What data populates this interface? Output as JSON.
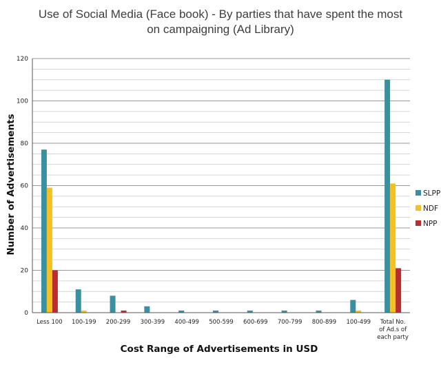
{
  "chart_data": {
    "type": "bar",
    "title_line1": "Use of Social Media (Face book) - By parties that have spent the most",
    "title_line2": "on campaigning  (Ad Library)",
    "xlabel": "Cost Range of Advertisements in USD",
    "ylabel": "Number of Advertisements",
    "ylim": [
      0,
      120
    ],
    "yticks": [
      0,
      20,
      40,
      60,
      80,
      100,
      120
    ],
    "categories": [
      [
        "Less 100"
      ],
      [
        "100-199"
      ],
      [
        "200-299"
      ],
      [
        "300-399"
      ],
      [
        "400-499"
      ],
      [
        "500-599"
      ],
      [
        "600-699"
      ],
      [
        "700-799"
      ],
      [
        "800-899"
      ],
      [
        "100-499"
      ],
      [
        "Total No.",
        "of  Ad.s of",
        "each party"
      ]
    ],
    "series": [
      {
        "name": "SLPP",
        "color": "#3a8fa0",
        "values": [
          77,
          11,
          8,
          3,
          1,
          1,
          1,
          1,
          1,
          6,
          110
        ]
      },
      {
        "name": "NDF",
        "color": "#f5c022",
        "values": [
          59,
          1,
          0,
          0,
          0,
          0,
          0,
          0,
          0,
          1,
          61
        ]
      },
      {
        "name": "NPP",
        "color": "#b82e2e",
        "values": [
          20,
          0,
          1,
          0,
          0,
          0,
          0,
          0,
          0,
          0,
          21
        ]
      }
    ],
    "grid": true,
    "legend": "right"
  }
}
